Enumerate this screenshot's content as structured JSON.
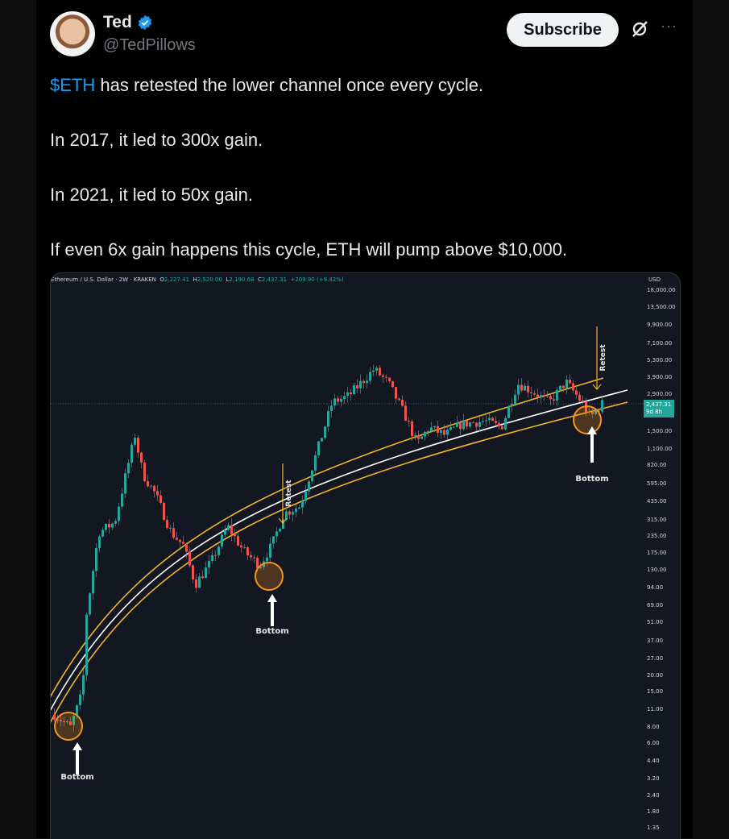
{
  "author": {
    "name": "Ted",
    "handle": "@TedPillows",
    "verified": true
  },
  "header": {
    "subscribe_label": "Subscribe",
    "grok_icon": "grok-icon",
    "more_icon": "more-icon",
    "more_label": "···"
  },
  "post": {
    "cashtag": "$ETH",
    "line1_rest": " has retested the lower channel once every cycle.",
    "line2": "In 2017, it led to 300x gain.",
    "line3": "In 2021, it led to 50x gain.",
    "line4": "If even 6x gain happens this cycle, ETH will pump above $10,000."
  },
  "chart_data": {
    "type": "candlestick",
    "title": "Ethereum / U.S. Dollar · 2W · KRAKEN",
    "ohlc": {
      "o_label": "O",
      "o": "2,227.41",
      "h_label": "H",
      "h": "2,520.00",
      "l_label": "L",
      "l": "2,190.68",
      "c_label": "C",
      "c": "2,437.31",
      "change": "+209.90 (+9.42%)"
    },
    "y_scale": "log",
    "y_unit": "USD",
    "y_ticks": [
      "18,000.00",
      "13,500.00",
      "9,900.00",
      "7,100.00",
      "5,300.00",
      "3,900.00",
      "2,900.00",
      "1,500.00",
      "1,100.00",
      "820.00",
      "595.00",
      "435.00",
      "315.00",
      "235.00",
      "175.00",
      "130.00",
      "94.00",
      "69.00",
      "51.00",
      "37.00",
      "27.00",
      "20.00",
      "15.00",
      "11.00",
      "8.00",
      "6.00",
      "4.40",
      "3.20",
      "2.40",
      "1.80",
      "1.35"
    ],
    "y_tick_values": [
      18000,
      13500,
      9900,
      7100,
      5300,
      3900,
      2900,
      1500,
      1100,
      820,
      595,
      435,
      315,
      235,
      175,
      130,
      94,
      69,
      51,
      37,
      27,
      20,
      15,
      11,
      8,
      6,
      4.4,
      3.2,
      2.4,
      1.8,
      1.35
    ],
    "last_price": {
      "value": "2,437.31",
      "countdown": "9d 8h"
    },
    "approx_price_path": [
      10,
      8,
      15,
      60,
      250,
      300,
      1400,
      700,
      500,
      250,
      200,
      100,
      150,
      280,
      180,
      140,
      200,
      350,
      400,
      1000,
      2500,
      2800,
      3500,
      4500,
      3500,
      2000,
      1200,
      1600,
      1400,
      1700,
      1800,
      1600,
      3500,
      3000,
      2500,
      3600,
      2500,
      1900,
      2437
    ],
    "annotations": {
      "bottom": "Bottom",
      "retest": "Retest"
    },
    "colors": {
      "up": "#26a69a",
      "down": "#ef5350",
      "channel": "#f0b429",
      "midline": "#ffffff",
      "background": "#131722",
      "circle": "#f7931a"
    }
  }
}
